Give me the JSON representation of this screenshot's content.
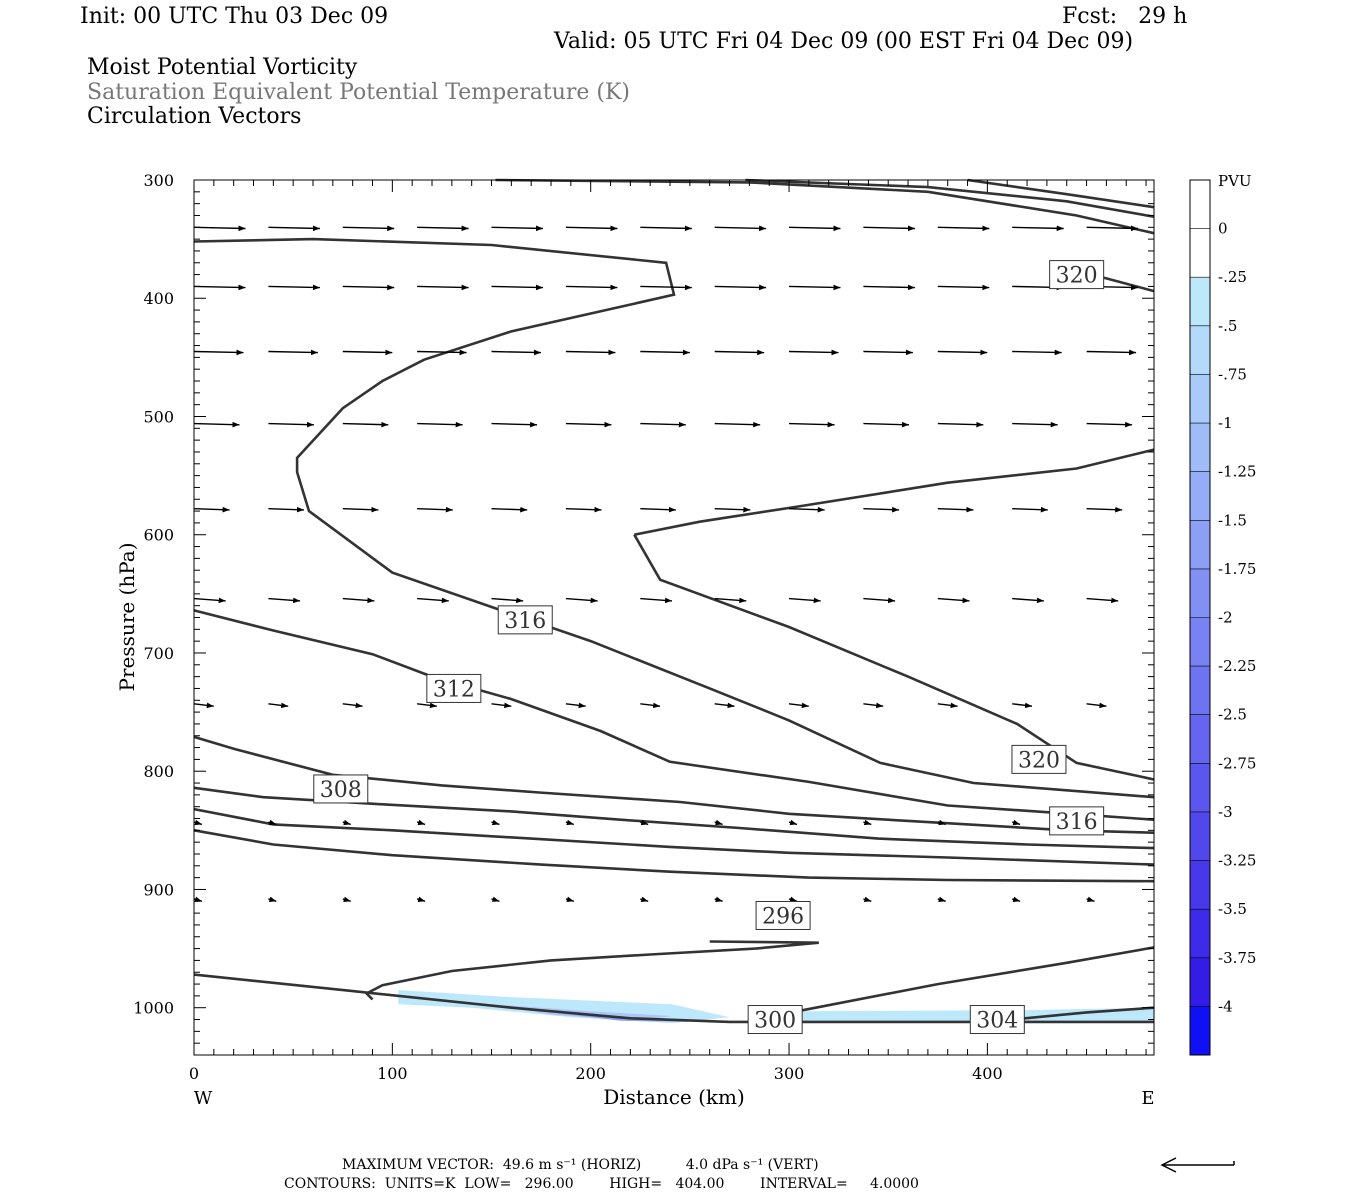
{
  "header": {
    "init": "Init: 00 UTC Thu 03 Dec 09",
    "fcst": "Fcst:   29 h",
    "valid": "Valid: 05 UTC Fri 04 Dec 09 (00 EST Fri 04 Dec 09)",
    "field1": "Moist Potential Vorticity",
    "field2": "Saturation Equivalent Potential Temperature (K)",
    "field3": "Circulation Vectors"
  },
  "chart_data": {
    "type": "cross-section",
    "xlabel": "Distance (km)",
    "ylabel": "Pressure (hPa)",
    "xlim": [
      0,
      484
    ],
    "ylim": [
      300,
      1040
    ],
    "y_scale": "linear-inverted",
    "x_ticks": [
      "0",
      "100",
      "200",
      "300",
      "400"
    ],
    "y_ticks": [
      "300",
      "400",
      "500",
      "600",
      "700",
      "800",
      "900",
      "1000"
    ],
    "x_end_labels": {
      "left": "W",
      "right": "E"
    },
    "contour_labels": [
      {
        "text": "320",
        "x": 445,
        "p": 380
      },
      {
        "text": "316",
        "x": 167,
        "p": 672
      },
      {
        "text": "312",
        "x": 131,
        "p": 730
      },
      {
        "text": "320",
        "x": 426,
        "p": 790
      },
      {
        "text": "308",
        "x": 74,
        "p": 815
      },
      {
        "text": "316",
        "x": 445,
        "p": 842
      },
      {
        "text": "296",
        "x": 297,
        "p": 922
      },
      {
        "text": "300",
        "x": 293,
        "p": 1010
      },
      {
        "text": "304",
        "x": 405,
        "p": 1010
      }
    ],
    "colorbar": {
      "unit": "PVU",
      "labels": [
        "0",
        "-.25",
        "-.5",
        "-.75",
        "-1",
        "-1.25",
        "-1.5",
        "-1.75",
        "-2",
        "-2.25",
        "-2.5",
        "-2.75",
        "-3",
        "-3.25",
        "-3.5",
        "-3.75",
        "-4"
      ],
      "colors": [
        "#ffffff",
        "#ffffff",
        "#bde8fb",
        "#b3d9fb",
        "#a9cbf9",
        "#9fbcf7",
        "#95adf6",
        "#8c9ff5",
        "#8290f3",
        "#7882f2",
        "#6e73f0",
        "#6565ef",
        "#5b56ed",
        "#5148ec",
        "#4739ea",
        "#3e2be9",
        "#341ce7",
        "#1010f5"
      ]
    }
  },
  "footer": {
    "line1": "MAXIMUM VECTOR:  49.6 m s⁻¹ (HORIZ)          4.0 dPa s⁻¹ (VERT)",
    "line2": "CONTOURS:  UNITS=K  LOW=   296.00        HIGH=   404.00        INTERVAL=     4.0000"
  }
}
